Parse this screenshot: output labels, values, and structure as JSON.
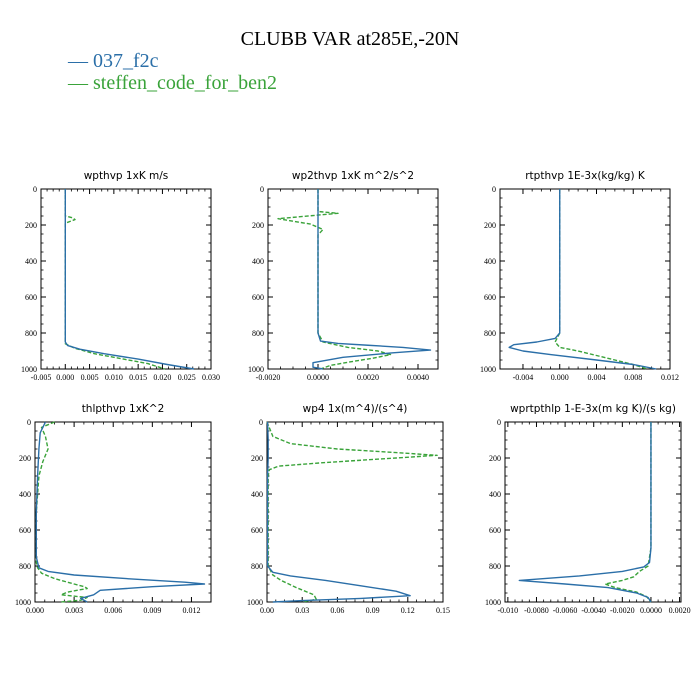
{
  "title": "CLUBB VAR at285E,-20N",
  "legend": [
    {
      "label": "— 037_f2c",
      "color": "#2b6fa8"
    },
    {
      "label": "— steffen_code_for_ben2",
      "color": "#3aa33a"
    }
  ],
  "chart_data": [
    {
      "type": "line",
      "title": "wpthvp  1xK m/s",
      "xlim": [
        -0.005,
        0.03
      ],
      "ylim": [
        1000,
        0
      ],
      "xticks": [
        "-0.005",
        "0.000",
        "0.005",
        "0.010",
        "0.015",
        "0.020",
        "0.025",
        "0.030"
      ],
      "xtick_values": [
        -0.005,
        0,
        0.005,
        0.01,
        0.015,
        0.02,
        0.025,
        0.03
      ],
      "yticks": [
        "0",
        "200",
        "400",
        "600",
        "800",
        "1000"
      ],
      "series": [
        {
          "name": "037_f2c",
          "points": [
            [
              0,
              0
            ],
            [
              0,
              200
            ],
            [
              0,
              400
            ],
            [
              0,
              600
            ],
            [
              0,
              800
            ],
            [
              0,
              850
            ],
            [
              0.0005,
              870
            ],
            [
              0.003,
              890
            ],
            [
              0.008,
              915
            ],
            [
              0.015,
              945
            ],
            [
              0.021,
              975
            ],
            [
              0.0265,
              1000
            ]
          ]
        },
        {
          "name": "steffen_code_for_ben2",
          "points": [
            [
              0,
              0
            ],
            [
              0,
              150
            ],
            [
              0.0015,
              160
            ],
            [
              0.002,
              170
            ],
            [
              0.001,
              180
            ],
            [
              0,
              190
            ],
            [
              0,
              400
            ],
            [
              0,
              800
            ],
            [
              0,
              860
            ],
            [
              0.002,
              885
            ],
            [
              0.006,
              915
            ],
            [
              0.012,
              945
            ],
            [
              0.017,
              970
            ],
            [
              0.0205,
              1000
            ]
          ]
        }
      ]
    },
    {
      "type": "line",
      "title": "wp2thvp  1xK m^2/s^2",
      "xlim": [
        -0.002,
        0.0048
      ],
      "ylim": [
        1000,
        0
      ],
      "xticks": [
        "-0.0020",
        "0.0000",
        "0.0020",
        "0.0040"
      ],
      "xtick_values": [
        -0.002,
        0,
        0.002,
        0.004
      ],
      "yticks": [
        "0",
        "200",
        "400",
        "600",
        "800",
        "1000"
      ],
      "series": [
        {
          "name": "037_f2c",
          "points": [
            [
              0,
              0
            ],
            [
              0,
              400
            ],
            [
              0,
              800
            ],
            [
              0.0001,
              845
            ],
            [
              0.0008,
              858
            ],
            [
              0.002,
              868
            ],
            [
              0.0034,
              880
            ],
            [
              0.0045,
              895
            ],
            [
              0.003,
              910
            ],
            [
              0.001,
              935
            ],
            [
              -0.0002,
              965
            ],
            [
              -0.0002,
              990
            ],
            [
              0.0002,
              1000
            ]
          ]
        },
        {
          "name": "steffen_code_for_ben2",
          "points": [
            [
              0,
              0
            ],
            [
              0,
              125
            ],
            [
              0.0008,
              135
            ],
            [
              -0.0016,
              165
            ],
            [
              -0.0003,
              195
            ],
            [
              0.0002,
              225
            ],
            [
              0.0001,
              240
            ],
            [
              0,
              255
            ],
            [
              0,
              800
            ],
            [
              0.0002,
              850
            ],
            [
              0.0012,
              880
            ],
            [
              0.0024,
              900
            ],
            [
              0.0029,
              920
            ],
            [
              0.0022,
              940
            ],
            [
              0.0013,
              960
            ],
            [
              0.0005,
              980
            ],
            [
              0.0001,
              1000
            ]
          ]
        }
      ]
    },
    {
      "type": "line",
      "title": "rtpthvp  1E-3x(kg/kg) K",
      "xlim": [
        -0.0065,
        0.012
      ],
      "ylim": [
        1000,
        0
      ],
      "xticks": [
        "-0.004",
        "0.000",
        "0.004",
        "0.008",
        "0.012"
      ],
      "xtick_values": [
        -0.004,
        0,
        0.004,
        0.008,
        0.012
      ],
      "yticks": [
        "0",
        "200",
        "400",
        "600",
        "800",
        "1000"
      ],
      "series": [
        {
          "name": "037_f2c",
          "points": [
            [
              0,
              0
            ],
            [
              0,
              400
            ],
            [
              0,
              700
            ],
            [
              0,
              800
            ],
            [
              -0.0005,
              830
            ],
            [
              -0.0025,
              850
            ],
            [
              -0.005,
              865
            ],
            [
              -0.0055,
              880
            ],
            [
              -0.004,
              900
            ],
            [
              -0.001,
              920
            ],
            [
              0.004,
              950
            ],
            [
              0.008,
              975
            ],
            [
              0.0105,
              1000
            ]
          ]
        },
        {
          "name": "steffen_code_for_ben2",
          "points": [
            [
              0,
              0
            ],
            [
              0,
              400
            ],
            [
              0,
              800
            ],
            [
              -0.0005,
              850
            ],
            [
              0,
              880
            ],
            [
              0.002,
              900
            ],
            [
              0.004,
              925
            ],
            [
              0.006,
              950
            ],
            [
              0.008,
              975
            ],
            [
              0.0095,
              1000
            ]
          ]
        }
      ]
    },
    {
      "type": "line",
      "title": "thlpthvp  1xK^2",
      "xlim": [
        0,
        0.0135
      ],
      "ylim": [
        1000,
        0
      ],
      "xticks": [
        "0.000",
        "0.003",
        "0.006",
        "0.009",
        "0.012"
      ],
      "xtick_values": [
        0,
        0.003,
        0.006,
        0.009,
        0.012
      ],
      "yticks": [
        "0",
        "200",
        "400",
        "600",
        "800",
        "1000"
      ],
      "series": [
        {
          "name": "037_f2c",
          "points": [
            [
              0.0008,
              0
            ],
            [
              0.0006,
              30
            ],
            [
              0.0004,
              60
            ],
            [
              0.0003,
              150
            ],
            [
              0.0002,
              300
            ],
            [
              0.0001,
              500
            ],
            [
              0.0001,
              750
            ],
            [
              0.0003,
              810
            ],
            [
              0.001,
              830
            ],
            [
              0.003,
              850
            ],
            [
              0.007,
              870
            ],
            [
              0.0115,
              890
            ],
            [
              0.013,
              900
            ],
            [
              0.009,
              915
            ],
            [
              0.005,
              935
            ],
            [
              0.0045,
              960
            ],
            [
              0.0035,
              980
            ],
            [
              0.004,
              1000
            ]
          ]
        },
        {
          "name": "steffen_code_for_ben2",
          "points": [
            [
              0.0015,
              0
            ],
            [
              0.0005,
              30
            ],
            [
              0.0008,
              80
            ],
            [
              0.001,
              150
            ],
            [
              0.0006,
              220
            ],
            [
              0.0003,
              300
            ],
            [
              0.0001,
              500
            ],
            [
              0.0001,
              780
            ],
            [
              0.0002,
              810
            ],
            [
              0.0005,
              840
            ],
            [
              0.0015,
              870
            ],
            [
              0.003,
              900
            ],
            [
              0.0038,
              915
            ],
            [
              0.004,
              925
            ],
            [
              0.0025,
              945
            ],
            [
              0.002,
              960
            ],
            [
              0.004,
              975
            ],
            [
              0.0035,
              990
            ],
            [
              0.002,
              1000
            ]
          ]
        }
      ]
    },
    {
      "type": "line",
      "title": "wp4  1x(m^4)/(s^4)",
      "xlim": [
        0,
        0.15
      ],
      "ylim": [
        1000,
        0
      ],
      "xticks": [
        "0.00",
        "0.03",
        "0.06",
        "0.09",
        "0.12",
        "0.15"
      ],
      "xtick_values": [
        0,
        0.03,
        0.06,
        0.09,
        0.12,
        0.15
      ],
      "yticks": [
        "0",
        "200",
        "400",
        "600",
        "800",
        "1000"
      ],
      "series": [
        {
          "name": "037_f2c",
          "points": [
            [
              0.0005,
              0
            ],
            [
              0.001,
              100
            ],
            [
              0.001,
              200
            ],
            [
              0.0005,
              300
            ],
            [
              0.0005,
              800
            ],
            [
              0.005,
              835
            ],
            [
              0.02,
              855
            ],
            [
              0.05,
              880
            ],
            [
              0.08,
              910
            ],
            [
              0.11,
              940
            ],
            [
              0.122,
              965
            ],
            [
              0.08,
              980
            ],
            [
              0.03,
              992
            ],
            [
              0.005,
              1000
            ]
          ]
        },
        {
          "name": "steffen_code_for_ben2",
          "points": [
            [
              0,
              0
            ],
            [
              0.005,
              80
            ],
            [
              0.02,
              120
            ],
            [
              0.06,
              150
            ],
            [
              0.11,
              170
            ],
            [
              0.145,
              185
            ],
            [
              0.11,
              200
            ],
            [
              0.05,
              225
            ],
            [
              0.01,
              245
            ],
            [
              0.002,
              265
            ],
            [
              0.001,
              300
            ],
            [
              0.001,
              800
            ],
            [
              0.005,
              850
            ],
            [
              0.012,
              880
            ],
            [
              0.025,
              920
            ],
            [
              0.04,
              960
            ],
            [
              0.042,
              985
            ],
            [
              0.03,
              1000
            ]
          ]
        }
      ]
    },
    {
      "type": "line",
      "title": "wprtpthlp  1-E-3x(m kg K)/(s kg)",
      "xlim": [
        -0.0102,
        0.0021
      ],
      "ylim": [
        1000,
        0
      ],
      "xticks": [
        "-0.010",
        "-0.0080",
        "-0.0060",
        "-0.0040",
        "-0.0020",
        "0.0000",
        "0.0020"
      ],
      "xtick_values": [
        -0.01,
        -0.008,
        -0.006,
        -0.004,
        -0.002,
        0,
        0.002
      ],
      "yticks": [
        "0",
        "200",
        "400",
        "600",
        "800",
        "1000"
      ],
      "series": [
        {
          "name": "037_f2c",
          "points": [
            [
              0,
              0
            ],
            [
              0,
              400
            ],
            [
              0,
              700
            ],
            [
              -0.0001,
              780
            ],
            [
              -0.0005,
              805
            ],
            [
              -0.002,
              830
            ],
            [
              -0.005,
              855
            ],
            [
              -0.0092,
              880
            ],
            [
              -0.006,
              900
            ],
            [
              -0.003,
              920
            ],
            [
              -0.001,
              950
            ],
            [
              -0.0002,
              975
            ],
            [
              0,
              1000
            ]
          ]
        },
        {
          "name": "steffen_code_for_ben2",
          "points": [
            [
              0,
              0
            ],
            [
              0,
              400
            ],
            [
              0,
              700
            ],
            [
              -0.0002,
              800
            ],
            [
              -0.0008,
              830
            ],
            [
              -0.0012,
              860
            ],
            [
              -0.002,
              880
            ],
            [
              -0.0032,
              900
            ],
            [
              -0.0025,
              920
            ],
            [
              -0.001,
              945
            ],
            [
              -0.0003,
              970
            ],
            [
              0,
              1000
            ]
          ]
        }
      ]
    }
  ]
}
